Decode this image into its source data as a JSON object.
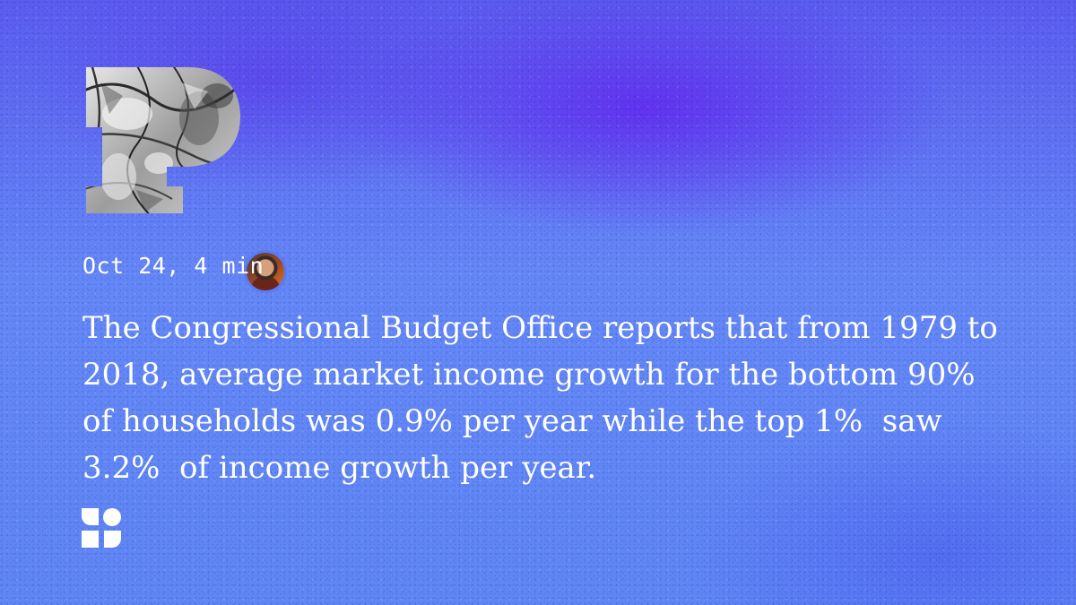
{
  "post": {
    "meta": "Oct 24, 4 min",
    "quote": "The Congressional Budget Office reports that from 1979 to 2018, average market income growth for the bottom 90% of households was 0.9% per year while the top 1%  saw 3.2%  of income growth per year."
  },
  "icons": {
    "publication_logo": "letter-p-logo-icon",
    "author_avatar": "author-avatar",
    "brand_mark": "four-petal-brand-icon"
  },
  "colors": {
    "background": "#5b7cf5",
    "background_glow": "#6228f0",
    "text": "#ffffff"
  }
}
